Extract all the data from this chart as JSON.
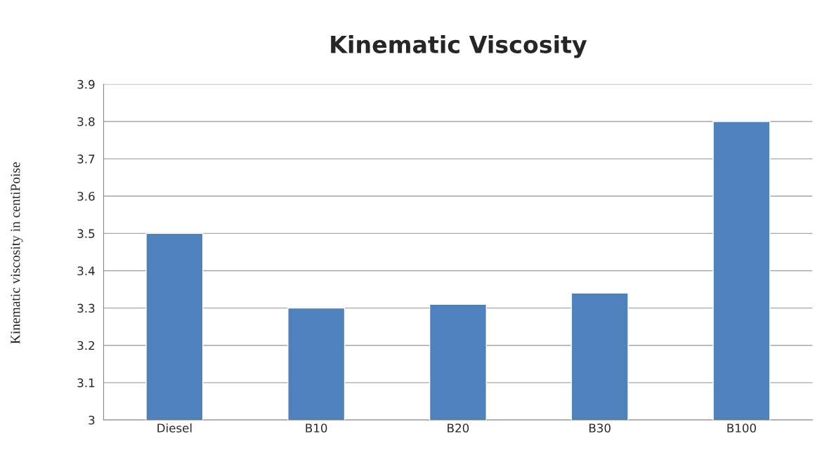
{
  "chart_data": {
    "type": "bar",
    "title": "Kinematic Viscosity",
    "ylabel": "Kinematic viscosity in centiPoise",
    "categories": [
      "Diesel",
      "B10",
      "B20",
      "B30",
      "B100"
    ],
    "values": [
      3.5,
      3.3,
      3.31,
      3.34,
      3.8
    ],
    "color": "#4f81bd",
    "ylim": [
      3,
      3.9
    ],
    "yticks": [
      3,
      3.1,
      3.2,
      3.3,
      3.4,
      3.5,
      3.6,
      3.7,
      3.8,
      3.9
    ],
    "grid": "y",
    "legend": false
  }
}
